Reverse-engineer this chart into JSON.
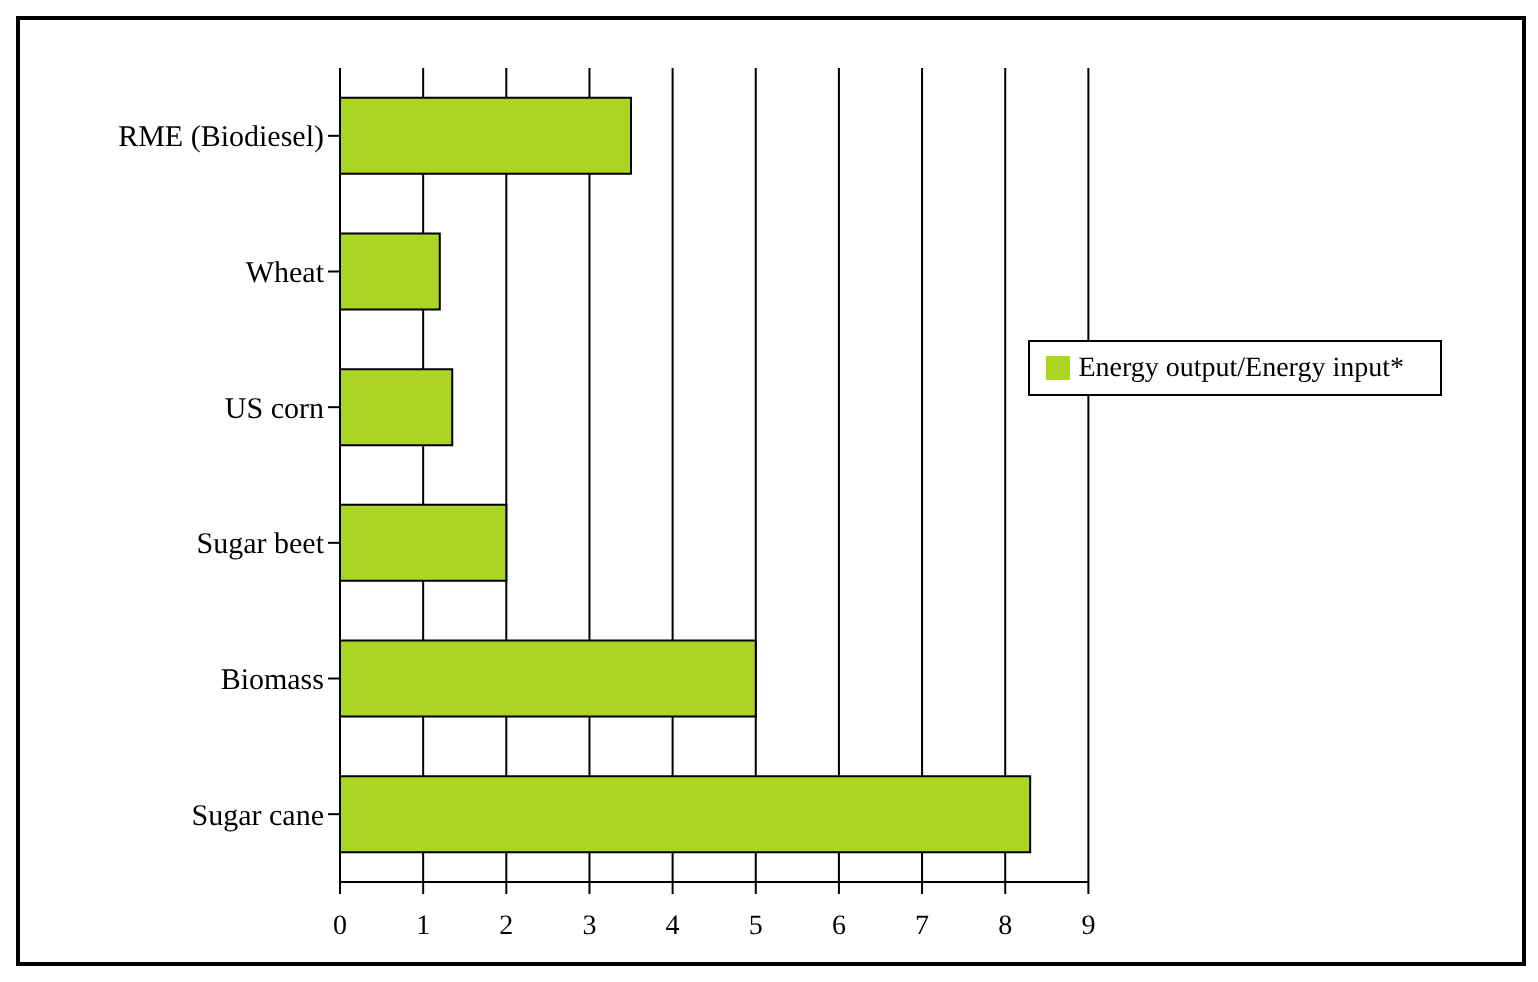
{
  "chart_data": {
    "type": "bar",
    "orientation": "horizontal",
    "categories": [
      "RME (Biodiesel)",
      "Wheat",
      "US corn",
      "Sugar beet",
      "Biomass",
      "Sugar cane"
    ],
    "series": [
      {
        "name": "Energy output/Energy input*",
        "color": "#acd422",
        "values": [
          3.5,
          1.2,
          1.35,
          2,
          5,
          8.3
        ]
      }
    ],
    "xlim": [
      0,
      9
    ],
    "xticks": [
      0,
      1,
      2,
      3,
      4,
      5,
      6,
      7,
      8,
      9
    ],
    "grid": "x",
    "legend": "right"
  }
}
